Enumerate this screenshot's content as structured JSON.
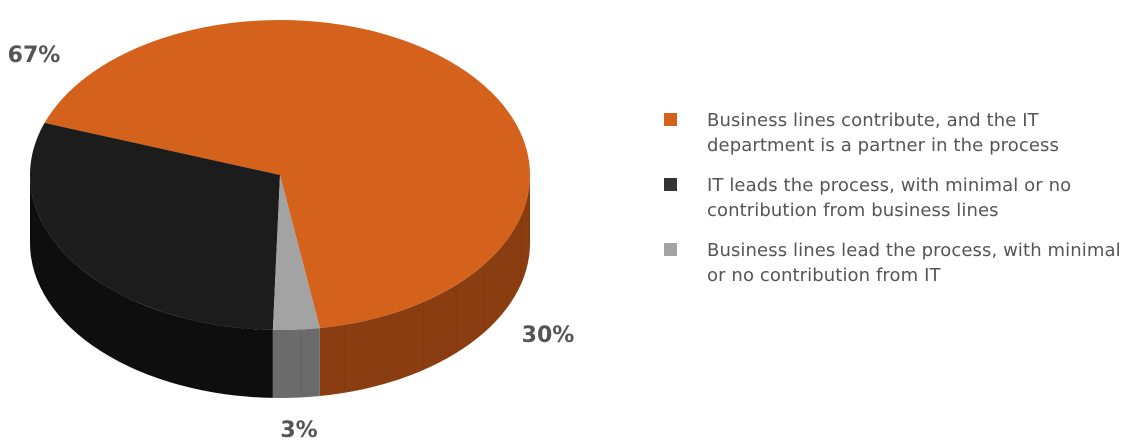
{
  "chart_data": {
    "type": "pie",
    "title": "",
    "slices": [
      {
        "label": "Business lines contribute, and the IT department is a partner in the process",
        "value": 67,
        "value_label": "67%",
        "color": "#d4621d",
        "side_color": "#8a3d10"
      },
      {
        "label": "IT leads the process, with minimal or no contribution from business lines",
        "value": 30,
        "value_label": "30%",
        "color": "#1c1c1c",
        "side_color": "#0e0e0e"
      },
      {
        "label": "Business lines lead the process, with minimal or no contribution from IT",
        "value": 3,
        "value_label": "3%",
        "color": "#a3a3a3",
        "side_color": "#6b6b6b"
      }
    ],
    "legend_position": "right",
    "style": "3d"
  },
  "legend": {
    "items": [
      {
        "text": "Business lines contribute, and the IT department is a partner in the process",
        "color": "#d4621d"
      },
      {
        "text": "IT leads the process, with minimal or no contribution from business lines",
        "color": "#333333"
      },
      {
        "text": "Business lines lead the process, with minimal or no contribution from IT",
        "color": "#a3a3a3"
      }
    ]
  }
}
